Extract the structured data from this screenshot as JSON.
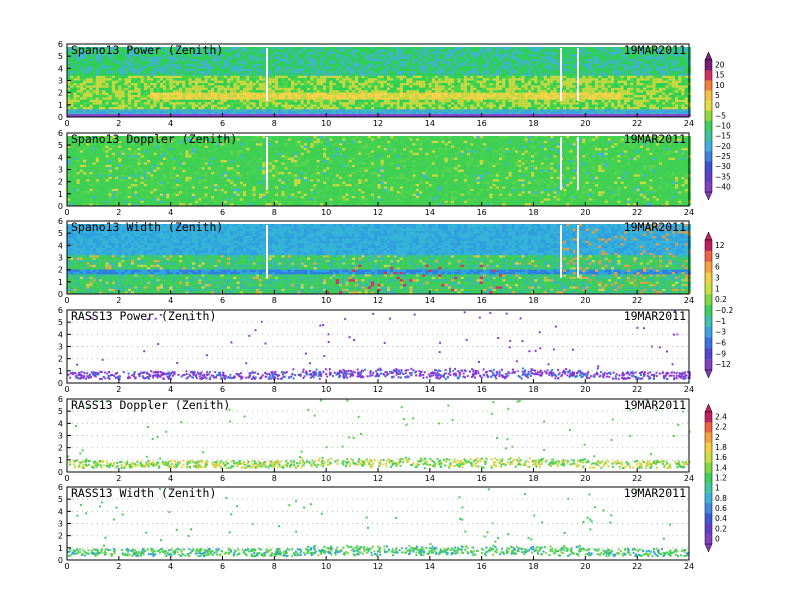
{
  "chart_data": [
    {
      "type": "heatmap",
      "title": "Spano13 Power (Zenith)",
      "date": "19MAR2011",
      "xlim": [
        0,
        24
      ],
      "ylim": [
        0,
        6
      ],
      "xticks": [
        0,
        2,
        4,
        6,
        8,
        10,
        12,
        14,
        16,
        18,
        20,
        22,
        24
      ],
      "yticks": [
        0,
        1,
        2,
        3,
        4,
        5,
        6
      ],
      "colorbar": {
        "group": "power-doppler",
        "labels": [
          "20",
          "15",
          "10",
          "5",
          "0",
          "-5",
          "-10",
          "-15",
          "-20",
          "-25",
          "-30",
          "-35",
          "-40"
        ]
      },
      "pattern": "dense",
      "colors": [
        "#8b3bd6",
        "#3fa0e8",
        "#2fcf55",
        "#4fd548",
        "#c8d840",
        "#ffd24a",
        "#8ad44a",
        "#47ce53",
        "#4bd250",
        "#3fb5c8",
        "#42d14f",
        "#45cf52"
      ]
    },
    {
      "type": "heatmap",
      "title": "Spano13 Doppler (Zenith)",
      "date": "19MAR2011",
      "xlim": [
        0,
        24
      ],
      "ylim": [
        0,
        6
      ],
      "xticks": [
        0,
        2,
        4,
        6,
        8,
        10,
        12,
        14,
        16,
        18,
        20,
        22,
        24
      ],
      "yticks": [
        0,
        1,
        2,
        3,
        4,
        5,
        6
      ],
      "colorbar": {
        "group": "power-doppler",
        "labels": []
      },
      "pattern": "dense",
      "colors": [
        "#3fcf55",
        "#46d44a",
        "#3fcf55",
        "#5fd44a",
        "#3fcf55",
        "#47d150",
        "#3fcf55",
        "#46d44a",
        "#3fcf55",
        "#3fcf55",
        "#3fcf55",
        "#3fcf55"
      ]
    },
    {
      "type": "heatmap",
      "title": "Spano13 Width (Zenith)",
      "date": "19MAR2011",
      "xlim": [
        0,
        24
      ],
      "ylim": [
        0,
        6
      ],
      "xticks": [
        0,
        2,
        4,
        6,
        8,
        10,
        12,
        14,
        16,
        18,
        20,
        22,
        24
      ],
      "yticks": [
        0,
        1,
        2,
        3,
        4,
        5,
        6
      ],
      "colorbar": {
        "group": "width",
        "labels": [
          "12",
          "9",
          "6",
          "3",
          "1",
          "0.2",
          "-0.2",
          "-1",
          "-3",
          "-6",
          "-9",
          "-12"
        ]
      },
      "pattern": "dense",
      "colors": [
        "#36b3d8",
        "#2f7fe0",
        "#2fa0e0",
        "#3fcf55",
        "#39bfa0",
        "#3fcf55",
        "#47d150",
        "#6fd548",
        "#a6d84a",
        "#cfd847",
        "#d8b048",
        "#3fcf55"
      ]
    },
    {
      "type": "scatter",
      "title": "RASS13 Power (Zenith)",
      "date": "19MAR2011",
      "xlim": [
        0,
        24
      ],
      "ylim": [
        0,
        6
      ],
      "xticks": [
        0,
        2,
        4,
        6,
        8,
        10,
        12,
        14,
        16,
        18,
        20,
        22,
        24
      ],
      "yticks": [
        0,
        1,
        2,
        3,
        4,
        5,
        6
      ],
      "colorbar": {
        "group": "width",
        "labels": []
      },
      "pattern": "rass",
      "colors": [
        "#8b3bd6",
        "#7a32d8",
        "#8b3bd6",
        "#2f7fe0"
      ]
    },
    {
      "type": "scatter",
      "title": "RASS13 Doppler (Zenith)",
      "date": "19MAR2011",
      "xlim": [
        0,
        24
      ],
      "ylim": [
        0,
        6
      ],
      "xticks": [
        0,
        2,
        4,
        6,
        8,
        10,
        12,
        14,
        16,
        18,
        20,
        22,
        24
      ],
      "yticks": [
        0,
        1,
        2,
        3,
        4,
        5,
        6
      ],
      "colorbar": {
        "group": "rass",
        "labels": [
          "2.4",
          "2.2",
          "2",
          "1.8",
          "1.6",
          "1.4",
          "1.2",
          "1",
          "0.8",
          "0.6",
          "0.4",
          "0.2",
          "0"
        ]
      },
      "pattern": "rass",
      "colors": [
        "#4fd548",
        "#c8d840",
        "#3fcf55",
        "#e8d048"
      ]
    },
    {
      "type": "scatter",
      "title": "RASS13 Width (Zenith)",
      "date": "19MAR2011",
      "xlim": [
        0,
        24
      ],
      "ylim": [
        0,
        6
      ],
      "xticks": [
        0,
        2,
        4,
        6,
        8,
        10,
        12,
        14,
        16,
        18,
        20,
        22,
        24
      ],
      "yticks": [
        0,
        1,
        2,
        3,
        4,
        5,
        6
      ],
      "colorbar": {
        "group": "rass",
        "labels": []
      },
      "pattern": "rass",
      "colors": [
        "#3fcf55",
        "#2fa0e0",
        "#3fcf55",
        "#7ad44a"
      ]
    }
  ],
  "colorbars": {
    "power-doppler": [
      "#7a1e7a",
      "#d0305a",
      "#f08040",
      "#f5c040",
      "#e0e040",
      "#90d840",
      "#40d060",
      "#40c0a0",
      "#40b0e0",
      "#4080e0",
      "#4050d0",
      "#6040c8",
      "#8040c0"
    ],
    "width": [
      "#c02060",
      "#f06040",
      "#f5a040",
      "#f0d040",
      "#c8e040",
      "#80d840",
      "#40d060",
      "#40c0b0",
      "#40a0e0",
      "#4070e0",
      "#5048d0",
      "#8040c0"
    ],
    "rass": [
      "#c02060",
      "#f06040",
      "#f5a040",
      "#f0d040",
      "#c8e040",
      "#80d840",
      "#40d060",
      "#40c8a0",
      "#40b0e0",
      "#4088e0",
      "#4058d8",
      "#6040c8",
      "#8040c0"
    ]
  }
}
